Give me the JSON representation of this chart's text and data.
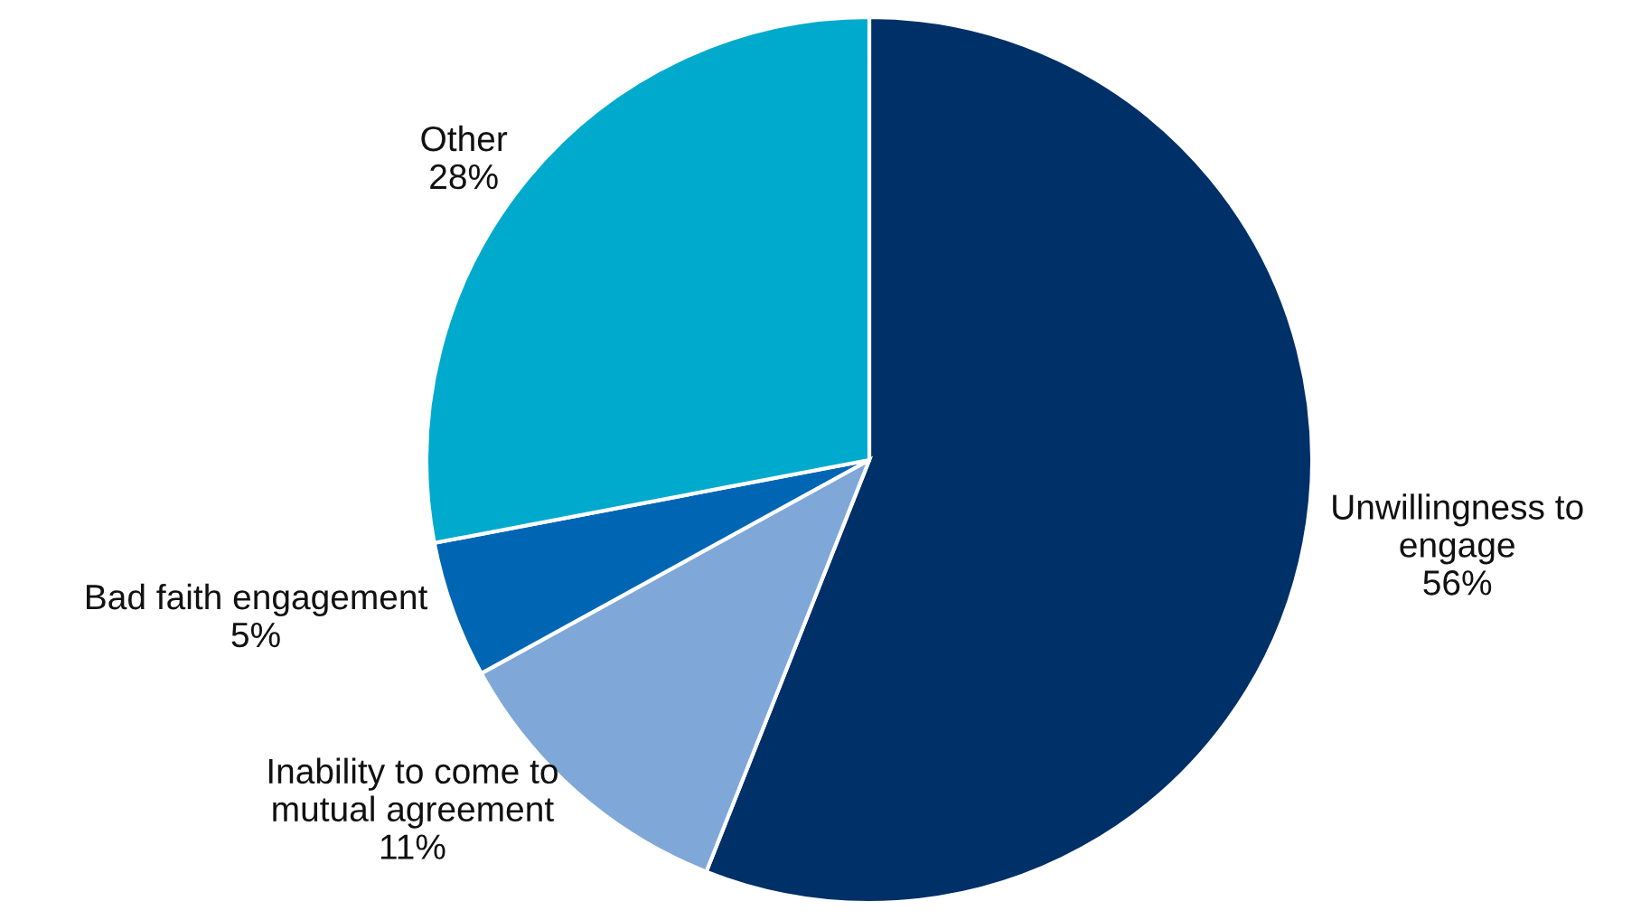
{
  "chart_data": {
    "type": "pie",
    "categories": [
      "Unwillingness to\nengage",
      "Inability to come to\nmutual agreement",
      "Bad faith engagement",
      "Other"
    ],
    "values": [
      56,
      11,
      5,
      28
    ],
    "colors": [
      "#003068",
      "#7fa8d8",
      "#0066b3",
      "#00aacc"
    ],
    "value_labels": [
      "56%",
      "11%",
      "5%",
      "28%"
    ]
  }
}
